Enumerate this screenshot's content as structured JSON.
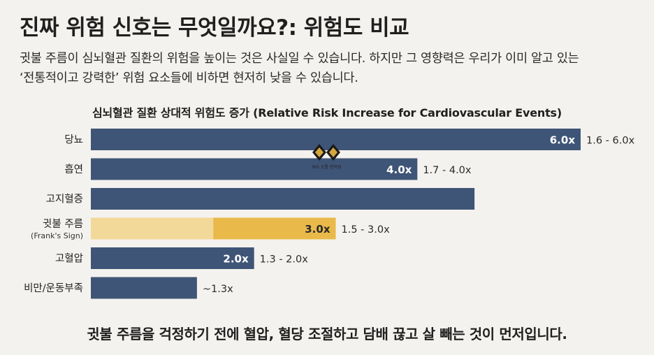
{
  "header": {
    "title": "진짜 위험 신호는 무엇일까요?: 위험도 비교",
    "description_line1": "귓불 주름이 심뇌혈관 질환의 위험을 높이는 것은 사실일 수 있습니다. 하지만 그 영향력은 우리가 이미 알고 있는",
    "description_line2": "‘전통적이고 강력한’ 위험 요소들에 비하면 현저히 낮을 수 있습니다."
  },
  "logo": {
    "text": "365 소통 한의원",
    "icon": "diamond-emblem-icon"
  },
  "chart_data": {
    "type": "bar",
    "orientation": "horizontal",
    "title": "심뇌혈관 질환 상대적 위험도 증가 (Relative Risk Increase for Cardiovascular Events)",
    "xlim": [
      0,
      6.0
    ],
    "grid": false,
    "legend": "none",
    "categories": [
      {
        "label": "당뇨",
        "sublabel": "",
        "value": 6.0,
        "range_low": 1.6,
        "value_label": "6.0x",
        "range_label": "1.6 - 6.0x",
        "highlight": false
      },
      {
        "label": "흡연",
        "sublabel": "",
        "value": 4.0,
        "range_low": 1.7,
        "value_label": "4.0x",
        "range_label": "1.7 - 4.0x",
        "highlight": false
      },
      {
        "label": "고지혈증",
        "sublabel": "",
        "value": 4.7,
        "range_low": null,
        "value_label": "",
        "range_label": "",
        "highlight": false
      },
      {
        "label": "귓불 주름",
        "sublabel": "(Frank's Sign)",
        "value": 3.0,
        "range_low": 1.5,
        "value_label": "3.0x",
        "range_label": "1.5 - 3.0x",
        "highlight": true
      },
      {
        "label": "고혈압",
        "sublabel": "",
        "value": 2.0,
        "range_low": 1.3,
        "value_label": "2.0x",
        "range_label": "1.3 - 2.0x",
        "highlight": false
      },
      {
        "label": "비만/운동부족",
        "sublabel": "",
        "value": 1.3,
        "range_low": null,
        "value_label": "",
        "range_label": "~1.3x",
        "highlight": false
      }
    ],
    "colors": {
      "bar": "#3f5577",
      "highlight_light": "#f2d99a",
      "highlight_dark": "#e9b94a",
      "value_label_on_dark": "#ffffff",
      "value_label_on_light": "#2a2a2a",
      "outside_label": "#2a2a2a"
    }
  },
  "footer": {
    "message": "귓불 주름을 걱정하기 전에 혈압, 혈당 조절하고 담배 끊고 살 빼는 것이 먼저입니다."
  }
}
